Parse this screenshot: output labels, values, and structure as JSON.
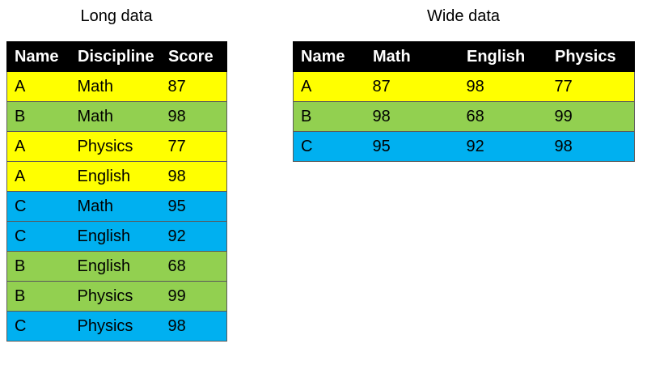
{
  "colors": {
    "header_bg": "#000000",
    "header_text": "#ffffff",
    "A": "#ffff00",
    "B": "#92d050",
    "C": "#00b0f0"
  },
  "long": {
    "title": "Long data",
    "headers": [
      "Name",
      "Discipline",
      "Score"
    ],
    "rows": [
      [
        "A",
        "Math",
        "87"
      ],
      [
        "B",
        "Math",
        "98"
      ],
      [
        "A",
        "Physics",
        "77"
      ],
      [
        "A",
        "English",
        "98"
      ],
      [
        "C",
        "Math",
        "95"
      ],
      [
        "C",
        "English",
        "92"
      ],
      [
        "B",
        "English",
        "68"
      ],
      [
        "B",
        "Physics",
        "99"
      ],
      [
        "C",
        "Physics",
        "98"
      ]
    ]
  },
  "wide": {
    "title": "Wide data",
    "headers": [
      "Name",
      "Math",
      "English",
      "Physics"
    ],
    "rows": [
      [
        "A",
        "87",
        "98",
        "77"
      ],
      [
        "B",
        "98",
        "68",
        "99"
      ],
      [
        "C",
        "95",
        "92",
        "98"
      ]
    ]
  }
}
